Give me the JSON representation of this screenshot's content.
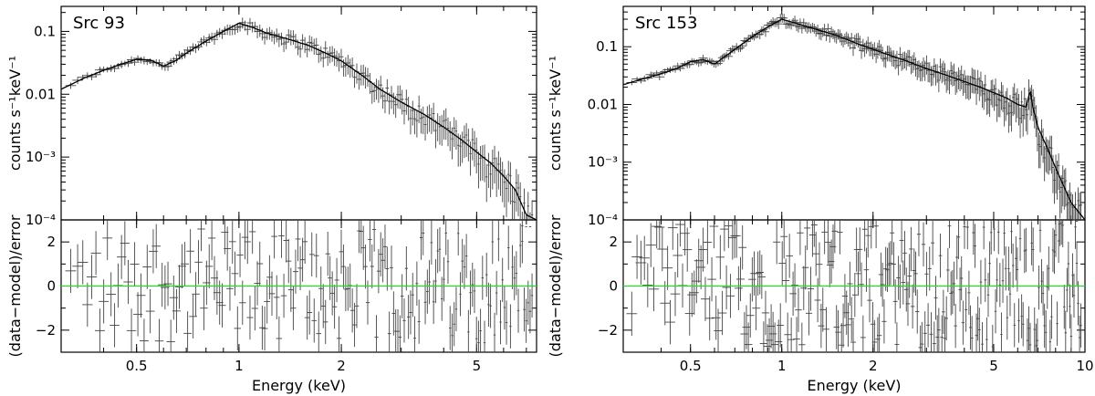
{
  "chart_data": [
    {
      "type": "scatter",
      "title": "Src 93",
      "xlabel": "Energy (keV)",
      "ylabel_top": "counts s⁻¹keV⁻¹",
      "ylabel_bottom": "(data−model)/error",
      "xscale": "log",
      "xlim": [
        0.3,
        7.5
      ],
      "x_ticks": [
        {
          "v": 0.5,
          "label": "0.5"
        },
        {
          "v": 1,
          "label": "1"
        },
        {
          "v": 2,
          "label": "2"
        },
        {
          "v": 5,
          "label": "5"
        }
      ],
      "top_yscale": "log",
      "top_ylim": [
        0.0001,
        0.25
      ],
      "top_y_ticks": [
        {
          "v": 0.1,
          "label": "0.1"
        },
        {
          "v": 0.01,
          "label": "0.01"
        },
        {
          "v": 0.001,
          "label": "10⁻³"
        },
        {
          "v": 0.0001,
          "label": "10⁻⁴"
        }
      ],
      "bottom_ylim": [
        -3,
        3
      ],
      "bottom_y_ticks": [
        {
          "v": 2,
          "label": "2"
        },
        {
          "v": 0,
          "label": "0"
        },
        {
          "v": -2,
          "label": "−2"
        }
      ],
      "model": {
        "x": [
          0.3,
          0.35,
          0.4,
          0.45,
          0.5,
          0.55,
          0.6,
          0.65,
          0.7,
          0.8,
          0.9,
          1.0,
          1.1,
          1.2,
          1.4,
          1.6,
          1.8,
          2.0,
          2.3,
          2.6,
          3.0,
          3.5,
          4.0,
          4.5,
          5.0,
          5.5,
          6.0,
          6.5,
          7.0,
          7.5
        ],
        "y": [
          0.012,
          0.018,
          0.024,
          0.03,
          0.036,
          0.035,
          0.028,
          0.034,
          0.045,
          0.07,
          0.1,
          0.135,
          0.115,
          0.095,
          0.075,
          0.06,
          0.045,
          0.034,
          0.02,
          0.012,
          0.0075,
          0.0048,
          0.003,
          0.0019,
          0.0012,
          0.0008,
          0.0005,
          0.0003,
          0.00012,
          0.0001
        ]
      },
      "residual_range": [
        -2.6,
        2.6
      ],
      "n_bins": 190
    },
    {
      "type": "scatter",
      "title": "Src 153",
      "xlabel": "Energy (keV)",
      "ylabel_top": "counts s⁻¹keV⁻¹",
      "ylabel_bottom": "(data−model)/error",
      "xscale": "log",
      "xlim": [
        0.3,
        10
      ],
      "x_ticks": [
        {
          "v": 0.5,
          "label": "0.5"
        },
        {
          "v": 1,
          "label": "1"
        },
        {
          "v": 2,
          "label": "2"
        },
        {
          "v": 5,
          "label": "5"
        },
        {
          "v": 10,
          "label": "10"
        }
      ],
      "top_yscale": "log",
      "top_ylim": [
        0.0001,
        0.5
      ],
      "top_y_ticks": [
        {
          "v": 0.1,
          "label": "0.1"
        },
        {
          "v": 0.01,
          "label": "0.01"
        },
        {
          "v": 0.001,
          "label": "10⁻³"
        },
        {
          "v": 0.0001,
          "label": "10⁻⁴"
        }
      ],
      "bottom_ylim": [
        -3,
        3
      ],
      "bottom_y_ticks": [
        {
          "v": 2,
          "label": "2"
        },
        {
          "v": 0,
          "label": "0"
        },
        {
          "v": -2,
          "label": "−2"
        }
      ],
      "model": {
        "x": [
          0.3,
          0.35,
          0.4,
          0.45,
          0.5,
          0.55,
          0.6,
          0.7,
          0.8,
          0.9,
          1.0,
          1.1,
          1.3,
          1.5,
          1.8,
          2.0,
          2.5,
          3.0,
          3.5,
          4.0,
          4.5,
          5.0,
          5.5,
          6.0,
          6.4,
          6.6,
          6.7,
          7.0,
          7.5,
          8.0,
          9.0,
          10.0
        ],
        "y": [
          0.022,
          0.028,
          0.034,
          0.042,
          0.055,
          0.06,
          0.05,
          0.09,
          0.15,
          0.22,
          0.3,
          0.26,
          0.2,
          0.16,
          0.11,
          0.09,
          0.06,
          0.042,
          0.032,
          0.025,
          0.02,
          0.016,
          0.013,
          0.01,
          0.009,
          0.018,
          0.01,
          0.004,
          0.0018,
          0.0008,
          0.0002,
          0.0001
        ]
      },
      "residual_range": [
        -2.8,
        2.9
      ],
      "n_bins": 260
    }
  ]
}
